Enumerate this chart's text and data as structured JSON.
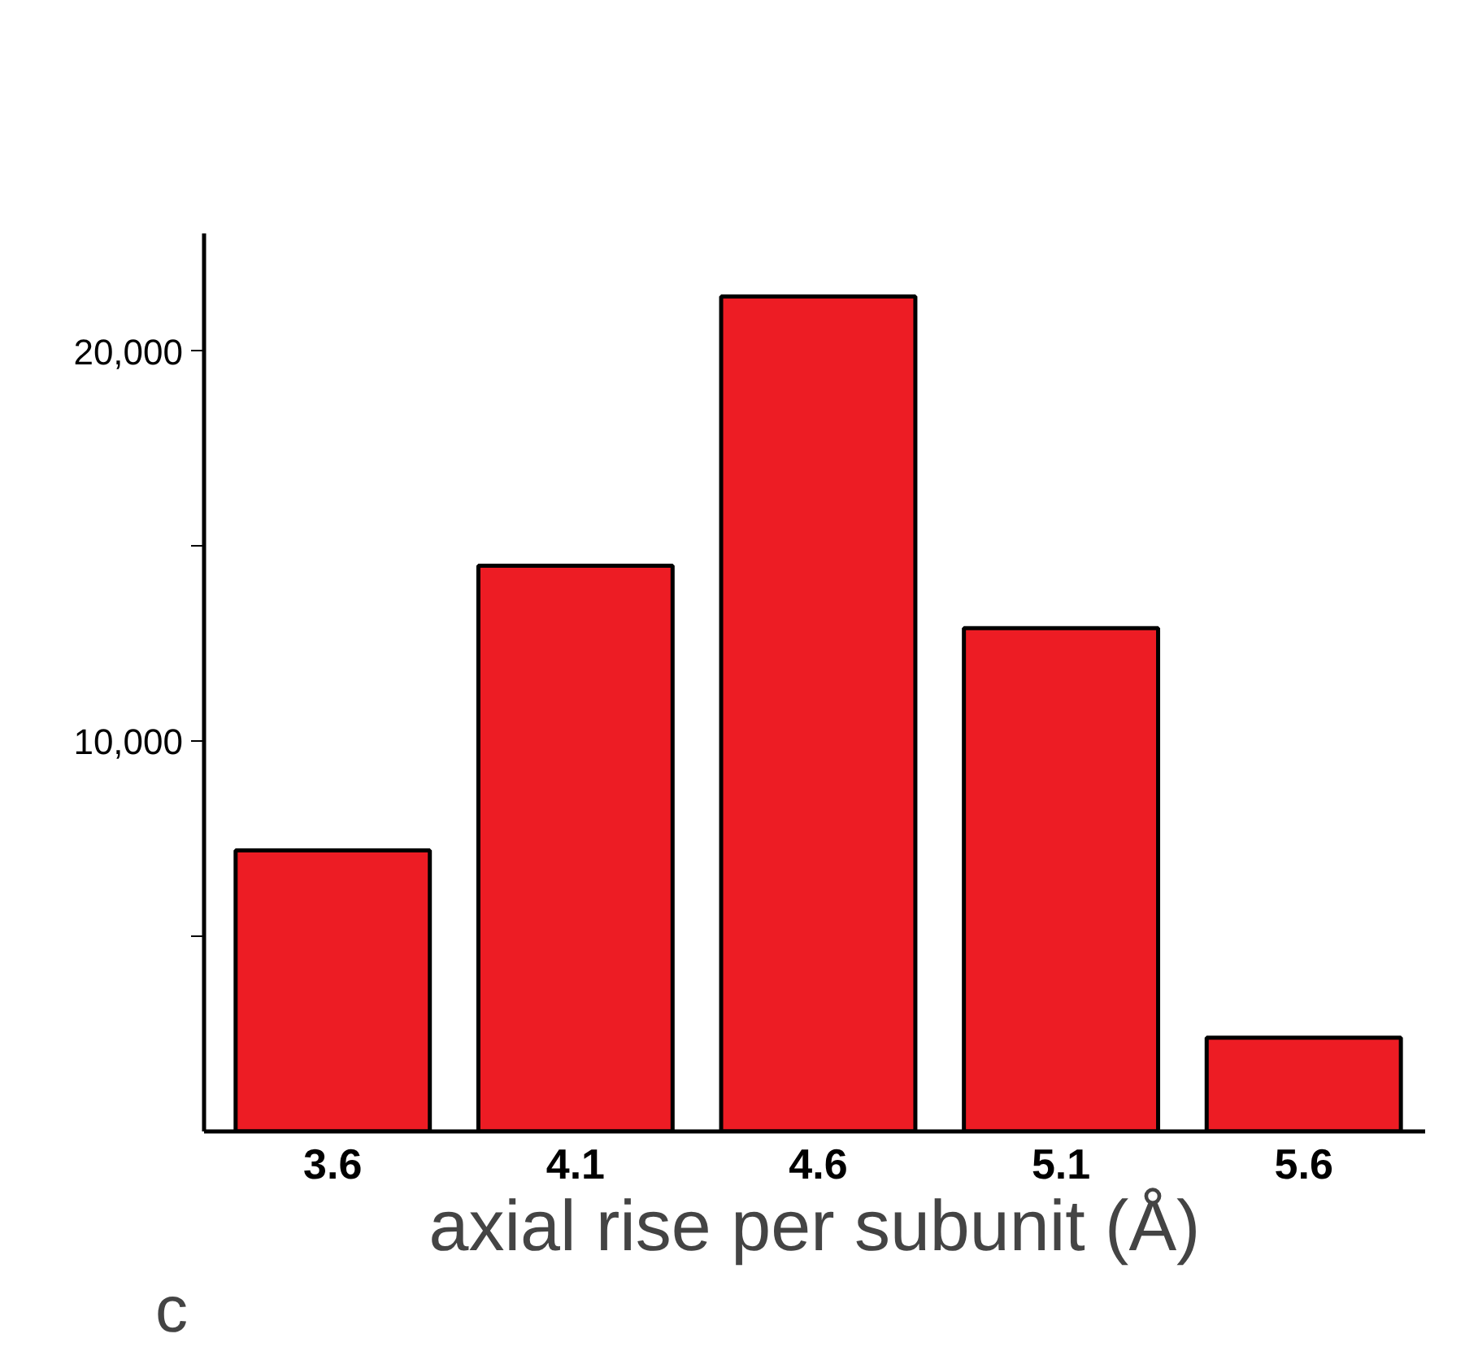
{
  "chart_data": {
    "type": "bar",
    "xlabel": "axial rise per subunit (Å)",
    "categories": [
      "3.6",
      "4.1",
      "4.6",
      "5.1",
      "5.6"
    ],
    "values": [
      7200,
      14500,
      21400,
      12900,
      2400
    ],
    "color": "#ed1c24",
    "ylim": [
      0,
      23000
    ],
    "yticks": [
      {
        "value": 5000,
        "label": null
      },
      {
        "value": 10000,
        "label": "10,000"
      },
      {
        "value": 15000,
        "label": null
      },
      {
        "value": 20000,
        "label": "20,000"
      }
    ],
    "grid": false,
    "annotations": [
      "c"
    ]
  }
}
